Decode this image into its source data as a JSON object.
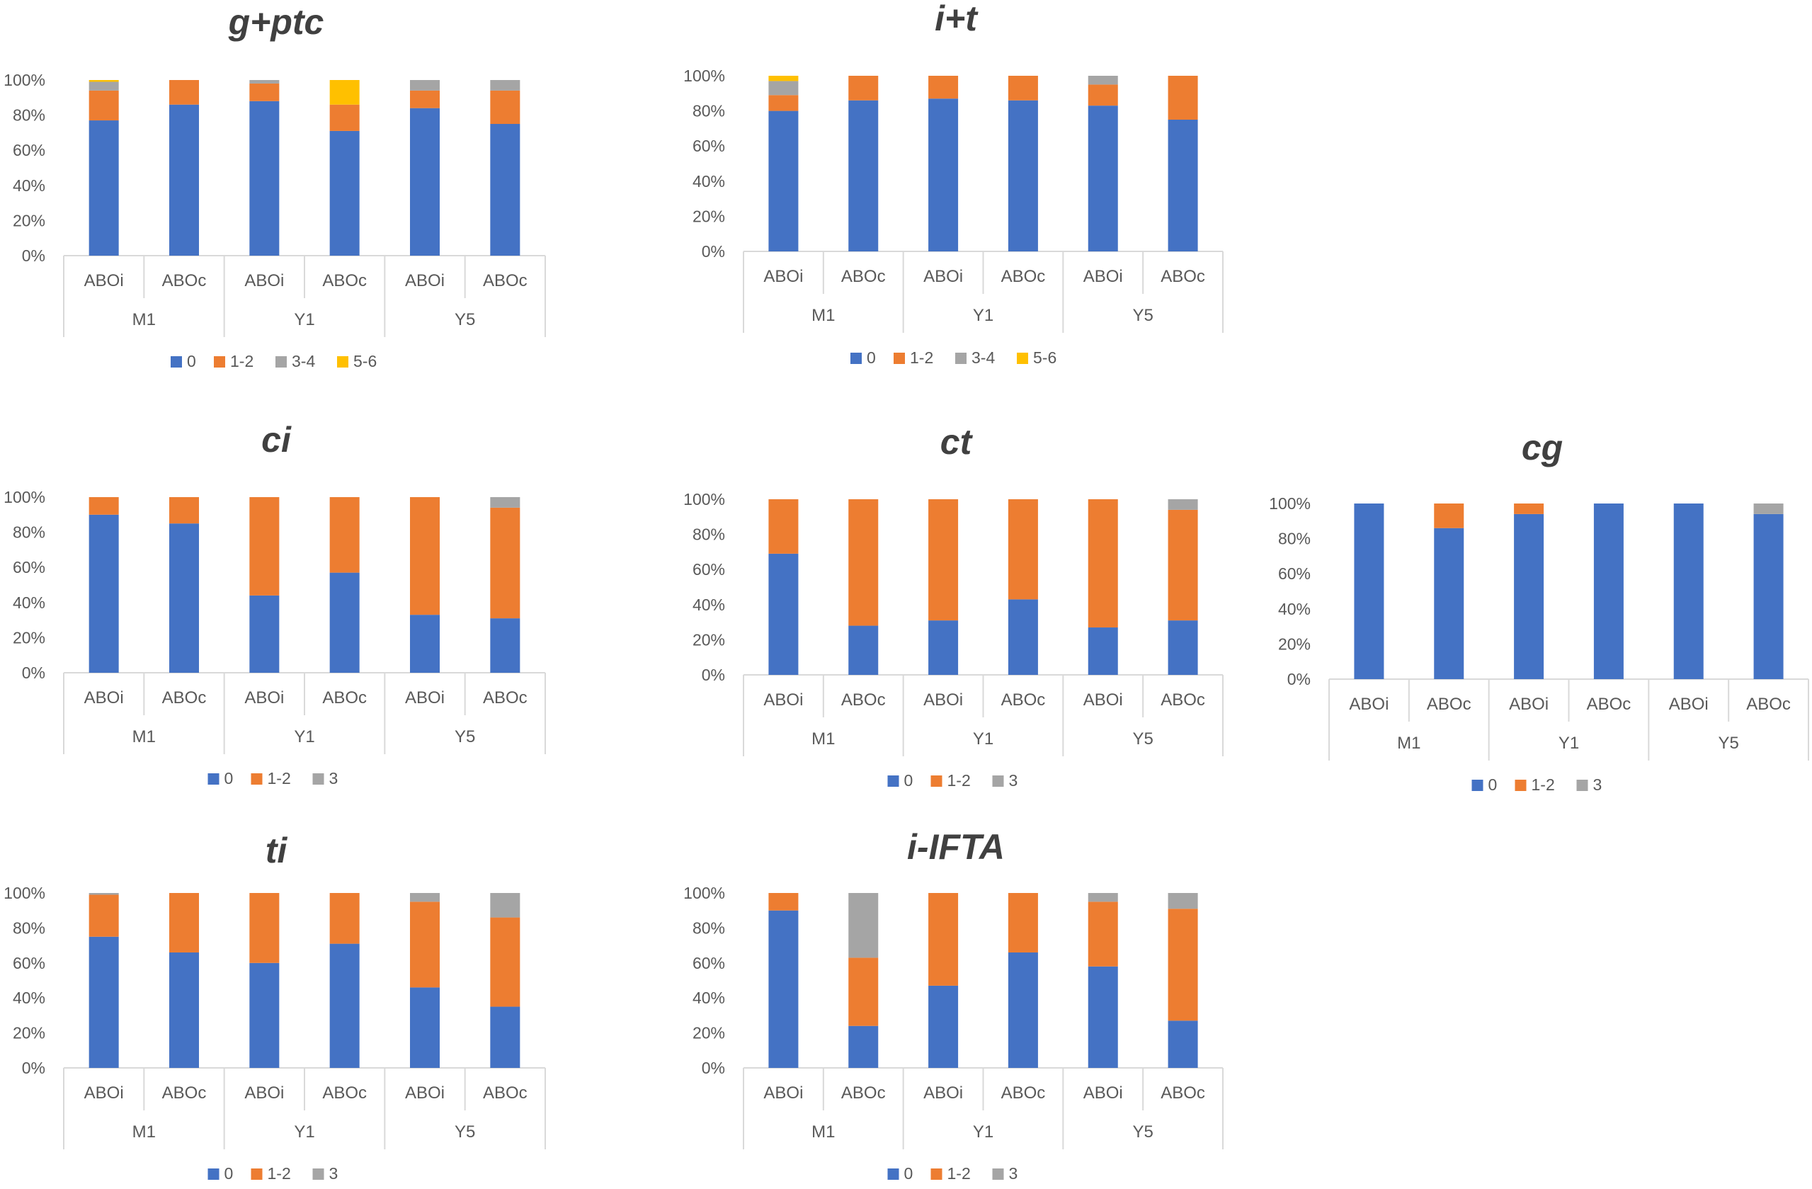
{
  "colors": {
    "0": "#4472C4",
    "1-2": "#ED7D31",
    "3-4": "#A5A5A5",
    "3": "#A5A5A5",
    "5-6": "#FFC000",
    "axis": "#D9D9D9",
    "text": "#595959",
    "title": "#404040"
  },
  "yticks": [
    "0%",
    "20%",
    "40%",
    "60%",
    "80%",
    "100%"
  ],
  "chart_data": [
    {
      "id": "g-ptc",
      "type": "bar",
      "stacked": true,
      "title": "g+ptc",
      "categories": [
        "ABOi",
        "ABOc",
        "ABOi",
        "ABOc",
        "ABOi",
        "ABOc"
      ],
      "groups": [
        "M1",
        "Y1",
        "Y5"
      ],
      "ylim": [
        0,
        100
      ],
      "series": [
        {
          "name": "0",
          "values": [
            77,
            86,
            88,
            71,
            84,
            75
          ]
        },
        {
          "name": "1-2",
          "values": [
            17,
            14,
            10,
            15,
            10,
            19
          ]
        },
        {
          "name": "3-4",
          "values": [
            5,
            0,
            2,
            0,
            6,
            6
          ]
        },
        {
          "name": "5-6",
          "values": [
            1,
            0,
            0,
            14,
            0,
            0
          ]
        }
      ]
    },
    {
      "id": "i-t",
      "type": "bar",
      "stacked": true,
      "title": "i+t",
      "categories": [
        "ABOi",
        "ABOc",
        "ABOi",
        "ABOc",
        "ABOi",
        "ABOc"
      ],
      "groups": [
        "M1",
        "Y1",
        "Y5"
      ],
      "ylim": [
        0,
        100
      ],
      "series": [
        {
          "name": "0",
          "values": [
            80,
            86,
            87,
            86,
            83,
            75
          ]
        },
        {
          "name": "1-2",
          "values": [
            9,
            14,
            13,
            14,
            12,
            25
          ]
        },
        {
          "name": "3-4",
          "values": [
            8,
            0,
            0,
            0,
            5,
            0
          ]
        },
        {
          "name": "5-6",
          "values": [
            3,
            0,
            0,
            0,
            0,
            0
          ]
        }
      ]
    },
    {
      "id": "ci",
      "type": "bar",
      "stacked": true,
      "title": "ci",
      "categories": [
        "ABOi",
        "ABOc",
        "ABOi",
        "ABOc",
        "ABOi",
        "ABOc"
      ],
      "groups": [
        "M1",
        "Y1",
        "Y5"
      ],
      "ylim": [
        0,
        100
      ],
      "series": [
        {
          "name": "0",
          "values": [
            90,
            85,
            44,
            57,
            33,
            31
          ]
        },
        {
          "name": "1-2",
          "values": [
            10,
            15,
            56,
            43,
            67,
            63
          ]
        },
        {
          "name": "3",
          "values": [
            0,
            0,
            0,
            0,
            0,
            6
          ]
        }
      ]
    },
    {
      "id": "ct",
      "type": "bar",
      "stacked": true,
      "title": "ct",
      "categories": [
        "ABOi",
        "ABOc",
        "ABOi",
        "ABOc",
        "ABOi",
        "ABOc"
      ],
      "groups": [
        "M1",
        "Y1",
        "Y5"
      ],
      "ylim": [
        0,
        100
      ],
      "series": [
        {
          "name": "0",
          "values": [
            69,
            28,
            31,
            43,
            27,
            31
          ]
        },
        {
          "name": "1-2",
          "values": [
            31,
            72,
            69,
            57,
            73,
            63
          ]
        },
        {
          "name": "3",
          "values": [
            0,
            0,
            0,
            0,
            0,
            6
          ]
        }
      ]
    },
    {
      "id": "cg",
      "type": "bar",
      "stacked": true,
      "title": "cg",
      "categories": [
        "ABOi",
        "ABOc",
        "ABOi",
        "ABOc",
        "ABOi",
        "ABOc"
      ],
      "groups": [
        "M1",
        "Y1",
        "Y5"
      ],
      "ylim": [
        0,
        100
      ],
      "series": [
        {
          "name": "0",
          "values": [
            100,
            86,
            94,
            100,
            100,
            94
          ]
        },
        {
          "name": "1-2",
          "values": [
            0,
            14,
            6,
            0,
            0,
            0
          ]
        },
        {
          "name": "3",
          "values": [
            0,
            0,
            0,
            0,
            0,
            6
          ]
        }
      ]
    },
    {
      "id": "ti",
      "type": "bar",
      "stacked": true,
      "title": "ti",
      "categories": [
        "ABOi",
        "ABOc",
        "ABOi",
        "ABOc",
        "ABOi",
        "ABOc"
      ],
      "groups": [
        "M1",
        "Y1",
        "Y5"
      ],
      "ylim": [
        0,
        100
      ],
      "series": [
        {
          "name": "0",
          "values": [
            75,
            66,
            60,
            71,
            46,
            35
          ]
        },
        {
          "name": "1-2",
          "values": [
            24,
            34,
            40,
            29,
            49,
            51
          ]
        },
        {
          "name": "3",
          "values": [
            1,
            0,
            0,
            0,
            5,
            14
          ]
        }
      ]
    },
    {
      "id": "i-ifta",
      "type": "bar",
      "stacked": true,
      "title": "i-IFTA",
      "categories": [
        "ABOi",
        "ABOc",
        "ABOi",
        "ABOc",
        "ABOi",
        "ABOc"
      ],
      "groups": [
        "M1",
        "Y1",
        "Y5"
      ],
      "ylim": [
        0,
        100
      ],
      "series": [
        {
          "name": "0",
          "values": [
            90,
            24,
            47,
            66,
            58,
            27
          ]
        },
        {
          "name": "1-2",
          "values": [
            10,
            39,
            53,
            34,
            37,
            64
          ]
        },
        {
          "name": "3",
          "values": [
            0,
            37,
            0,
            0,
            5,
            9
          ]
        }
      ]
    }
  ]
}
